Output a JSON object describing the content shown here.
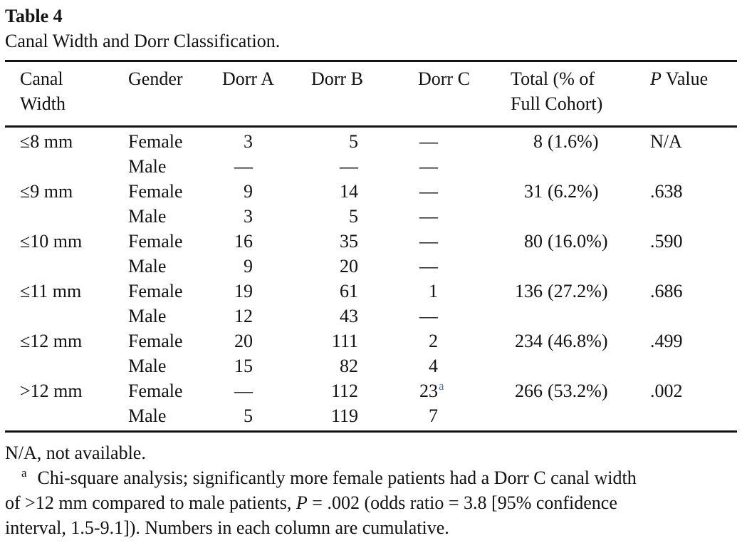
{
  "title": "Table 4",
  "caption": "Canal Width and Dorr Classification.",
  "colors": {
    "text": "#121212",
    "background": "#ffffff",
    "rule": "#141414",
    "footnote_link_blue": "#4e7ea6"
  },
  "table": {
    "headers": {
      "canal_width": "Canal Width",
      "gender": "Gender",
      "dorr_a": "Dorr A",
      "dorr_b": "Dorr B",
      "dorr_c": "Dorr C",
      "total_line1": "Total (% of",
      "total_line2": "Full Cohort)",
      "p_italic": "P",
      "p_rest": " Value"
    },
    "rows": [
      {
        "canal": "≤8 mm",
        "gender": "Female",
        "dorr_a": "3",
        "dorr_b": "5",
        "dorr_c": "—",
        "dorr_c_sup": "",
        "total": "8",
        "total_pct": "(1.6%)",
        "p": "N/A"
      },
      {
        "canal": "",
        "gender": "Male",
        "dorr_a": "—",
        "dorr_b": "—",
        "dorr_c": "—",
        "dorr_c_sup": "",
        "total": "",
        "total_pct": "",
        "p": ""
      },
      {
        "canal": "≤9 mm",
        "gender": "Female",
        "dorr_a": "9",
        "dorr_b": "14",
        "dorr_c": "—",
        "dorr_c_sup": "",
        "total": "31",
        "total_pct": "(6.2%)",
        "p": ".638"
      },
      {
        "canal": "",
        "gender": "Male",
        "dorr_a": "3",
        "dorr_b": "5",
        "dorr_c": "—",
        "dorr_c_sup": "",
        "total": "",
        "total_pct": "",
        "p": ""
      },
      {
        "canal": "≤10 mm",
        "gender": "Female",
        "dorr_a": "16",
        "dorr_b": "35",
        "dorr_c": "—",
        "dorr_c_sup": "",
        "total": "80",
        "total_pct": "(16.0%)",
        "p": ".590"
      },
      {
        "canal": "",
        "gender": "Male",
        "dorr_a": "9",
        "dorr_b": "20",
        "dorr_c": "—",
        "dorr_c_sup": "",
        "total": "",
        "total_pct": "",
        "p": ""
      },
      {
        "canal": "≤11 mm",
        "gender": "Female",
        "dorr_a": "19",
        "dorr_b": "61",
        "dorr_c": "1",
        "dorr_c_sup": "",
        "total": "136",
        "total_pct": "(27.2%)",
        "p": ".686"
      },
      {
        "canal": "",
        "gender": "Male",
        "dorr_a": "12",
        "dorr_b": "43",
        "dorr_c": "—",
        "dorr_c_sup": "",
        "total": "",
        "total_pct": "",
        "p": ""
      },
      {
        "canal": "≤12 mm",
        "gender": "Female",
        "dorr_a": "20",
        "dorr_b": "111",
        "dorr_c": "2",
        "dorr_c_sup": "",
        "total": "234",
        "total_pct": "(46.8%)",
        "p": ".499"
      },
      {
        "canal": "",
        "gender": "Male",
        "dorr_a": "15",
        "dorr_b": "82",
        "dorr_c": "4",
        "dorr_c_sup": "",
        "total": "",
        "total_pct": "",
        "p": ""
      },
      {
        "canal": ">12 mm",
        "gender": "Female",
        "dorr_a": "—",
        "dorr_b": "112",
        "dorr_c": "23",
        "dorr_c_sup": "a",
        "total": "266",
        "total_pct": "(53.2%)",
        "p": ".002"
      },
      {
        "canal": "",
        "gender": "Male",
        "dorr_a": "5",
        "dorr_b": "119",
        "dorr_c": "7",
        "dorr_c_sup": "",
        "total": "",
        "total_pct": "",
        "p": ""
      }
    ]
  },
  "footnotes": {
    "na_note": "N/A, not available.",
    "a_marker": "a",
    "a_line1": "Chi-square analysis; significantly more female patients had a Dorr C canal width",
    "a_line2_pre": "of >12 mm compared to male patients, ",
    "a_line2_p": "P",
    "a_line2_post": " = .002 (odds ratio = 3.8 [95% confidence",
    "a_line3": "interval, 1.5-9.1]). Numbers in each column are cumulative."
  }
}
